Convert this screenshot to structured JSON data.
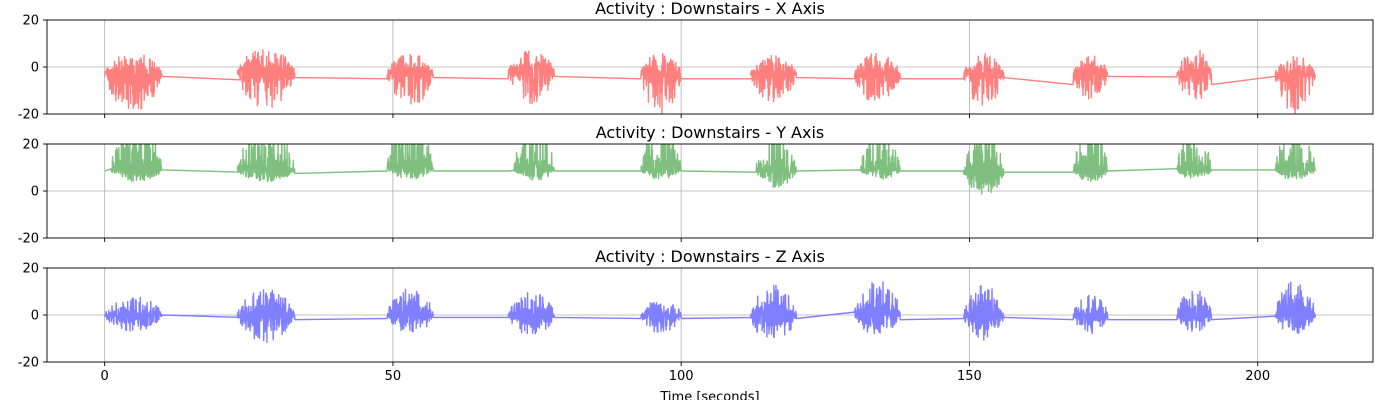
{
  "chart_data": [
    {
      "type": "line",
      "title": "Activity : Downstairs - X Axis",
      "xlabel": "",
      "ylabel": "",
      "xlim": [
        -10,
        220
      ],
      "ylim": [
        -20,
        20
      ],
      "xticks": [
        0,
        50,
        100,
        150,
        200
      ],
      "yticks": [
        -20,
        0,
        20
      ],
      "ytick_labels": [
        "-20",
        "0",
        "20"
      ],
      "grid": true,
      "series": [
        {
          "color": "#ff7f7f",
          "baseline": [
            [
              0,
              -4
            ],
            [
              10,
              -4
            ],
            [
              24,
              -5.5
            ],
            [
              33,
              -4.5
            ],
            [
              49,
              -5
            ],
            [
              57,
              -4.5
            ],
            [
              70,
              -5
            ],
            [
              78,
              -4
            ],
            [
              93,
              -5
            ],
            [
              100,
              -5
            ],
            [
              113,
              -5
            ],
            [
              120,
              -4.5
            ],
            [
              131,
              -5
            ],
            [
              138,
              -5
            ],
            [
              149,
              -5
            ],
            [
              156,
              -4.5
            ],
            [
              168,
              -7.5
            ],
            [
              174,
              -4
            ],
            [
              186,
              -4.2
            ],
            [
              192,
              -7.5
            ],
            [
              203,
              -4
            ],
            [
              210,
              -4.5
            ]
          ],
          "bursts": [
            [
              0,
              10,
              -3,
              9,
              16
            ],
            [
              23,
              33,
              -2,
              10,
              16
            ],
            [
              49,
              57,
              -3,
              9,
              14
            ],
            [
              70,
              78,
              -2,
              9,
              14
            ],
            [
              93,
              100,
              -3,
              10,
              17
            ],
            [
              112,
              120,
              -3,
              8,
              12
            ],
            [
              130,
              138,
              -3,
              9,
              13
            ],
            [
              149,
              156,
              -3,
              9,
              14
            ],
            [
              168,
              174,
              -3,
              8,
              11
            ],
            [
              186,
              192,
              -3,
              11,
              12
            ],
            [
              203,
              210,
              -3,
              8,
              17
            ]
          ]
        }
      ]
    },
    {
      "type": "line",
      "title": "Activity : Downstairs - Y Axis",
      "xlabel": "",
      "ylabel": "",
      "xlim": [
        -10,
        220
      ],
      "ylim": [
        -20,
        20
      ],
      "xticks": [
        0,
        50,
        100,
        150,
        200
      ],
      "yticks": [
        -20,
        0,
        20
      ],
      "ytick_labels": [
        "-20",
        "0",
        "20"
      ],
      "grid": true,
      "series": [
        {
          "color": "#7fbf7f",
          "baseline": [
            [
              0,
              8.5
            ],
            [
              10,
              9
            ],
            [
              24,
              8
            ],
            [
              33,
              7.5
            ],
            [
              49,
              8.5
            ],
            [
              57,
              8.5
            ],
            [
              70,
              8.5
            ],
            [
              78,
              8.5
            ],
            [
              93,
              8.5
            ],
            [
              100,
              8.5
            ],
            [
              113,
              8
            ],
            [
              120,
              8.5
            ],
            [
              131,
              9
            ],
            [
              138,
              8.5
            ],
            [
              149,
              8.5
            ],
            [
              156,
              8
            ],
            [
              168,
              8
            ],
            [
              174,
              8.5
            ],
            [
              186,
              9.5
            ],
            [
              192,
              9
            ],
            [
              203,
              9
            ],
            [
              210,
              9
            ]
          ],
          "bursts": [
            [
              1,
              10,
              9,
              20,
              5
            ],
            [
              23,
              33,
              9,
              20,
              5
            ],
            [
              49,
              57,
              10,
              20,
              5
            ],
            [
              71,
              78,
              9,
              20,
              3
            ],
            [
              93,
              100,
              9,
              20,
              3
            ],
            [
              113,
              120,
              9,
              19,
              8
            ],
            [
              131,
              138,
              9,
              20,
              3
            ],
            [
              149,
              156,
              8,
              18,
              10
            ],
            [
              168,
              174,
              9,
              20,
              5
            ],
            [
              186,
              192,
              9,
              19,
              3
            ],
            [
              203,
              210,
              9,
              19,
              3
            ]
          ]
        }
      ]
    },
    {
      "type": "line",
      "title": "Activity : Downstairs - Z Axis",
      "xlabel": "Time [seconds]",
      "ylabel": "",
      "xlim": [
        -10,
        220
      ],
      "ylim": [
        -20,
        20
      ],
      "xticks": [
        0,
        50,
        100,
        150,
        200
      ],
      "xtick_labels": [
        "0",
        "50",
        "100",
        "150",
        "200"
      ],
      "yticks": [
        -20,
        0,
        20
      ],
      "ytick_labels": [
        "-20",
        "0",
        "20"
      ],
      "grid": true,
      "series": [
        {
          "color": "#7f7fff",
          "baseline": [
            [
              0,
              0
            ],
            [
              10,
              0
            ],
            [
              24,
              -1
            ],
            [
              33,
              -2
            ],
            [
              49,
              -1.5
            ],
            [
              57,
              -1
            ],
            [
              70,
              -1
            ],
            [
              78,
              -1
            ],
            [
              93,
              -1.5
            ],
            [
              100,
              -1.5
            ],
            [
              113,
              -1
            ],
            [
              120,
              -1.5
            ],
            [
              131,
              1.5
            ],
            [
              138,
              -2
            ],
            [
              149,
              -1.5
            ],
            [
              156,
              -1
            ],
            [
              168,
              -2
            ],
            [
              174,
              -2
            ],
            [
              186,
              -2
            ],
            [
              192,
              -2
            ],
            [
              203,
              -0.5
            ],
            [
              210,
              -1
            ]
          ],
          "bursts": [
            [
              0,
              10,
              0,
              8,
              7
            ],
            [
              23,
              33,
              0,
              11,
              12
            ],
            [
              49,
              57,
              0,
              12,
              9
            ],
            [
              70,
              78,
              0,
              10,
              9
            ],
            [
              93,
              100,
              0,
              7,
              8
            ],
            [
              112,
              120,
              0,
              13,
              12
            ],
            [
              130,
              138,
              1,
              14,
              10
            ],
            [
              149,
              156,
              0,
              13,
              11
            ],
            [
              168,
              174,
              0,
              9,
              8
            ],
            [
              186,
              192,
              0,
              11,
              8
            ],
            [
              203,
              210,
              0,
              15,
              9
            ]
          ]
        }
      ]
    }
  ]
}
